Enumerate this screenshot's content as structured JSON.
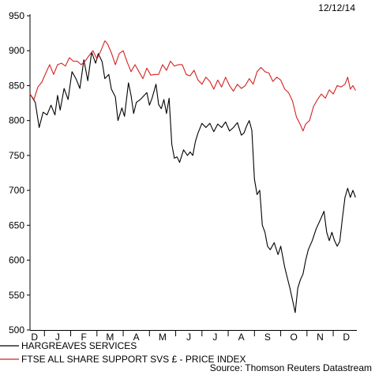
{
  "date_label": "12/12/14",
  "source": "Source: Thomson Reuters Datastream",
  "chart_data": {
    "type": "line",
    "title": "",
    "xlabel": "",
    "ylabel": "",
    "ylim": [
      500,
      950
    ],
    "yticks": [
      500,
      550,
      600,
      650,
      700,
      750,
      800,
      850,
      900,
      950
    ],
    "x_categories": [
      "D",
      "J",
      "F",
      "M",
      "A",
      "M",
      "J",
      "J",
      "A",
      "S",
      "O",
      "N",
      "D"
    ],
    "x_range_months": [
      0,
      12.45
    ],
    "grid": false,
    "legend_position": "bottom-left",
    "series": [
      {
        "name": "HARGREAVES SERVICES",
        "color": "#000000",
        "points": [
          [
            0,
            838
          ],
          [
            0.2,
            826
          ],
          [
            0.35,
            790
          ],
          [
            0.5,
            812
          ],
          [
            0.65,
            808
          ],
          [
            0.8,
            822
          ],
          [
            0.95,
            808
          ],
          [
            1.05,
            836
          ],
          [
            1.15,
            815
          ],
          [
            1.3,
            846
          ],
          [
            1.45,
            830
          ],
          [
            1.6,
            870
          ],
          [
            1.75,
            860
          ],
          [
            1.9,
            846
          ],
          [
            2.05,
            887
          ],
          [
            2.2,
            857
          ],
          [
            2.35,
            898
          ],
          [
            2.5,
            882
          ],
          [
            2.6,
            896
          ],
          [
            2.75,
            884
          ],
          [
            2.85,
            860
          ],
          [
            3.0,
            866
          ],
          [
            3.1,
            845
          ],
          [
            3.25,
            834
          ],
          [
            3.35,
            800
          ],
          [
            3.5,
            818
          ],
          [
            3.6,
            806
          ],
          [
            3.75,
            854
          ],
          [
            3.85,
            836
          ],
          [
            3.95,
            810
          ],
          [
            4.05,
            826
          ],
          [
            4.2,
            830
          ],
          [
            4.35,
            836
          ],
          [
            4.45,
            840
          ],
          [
            4.55,
            822
          ],
          [
            4.65,
            832
          ],
          [
            4.8,
            852
          ],
          [
            4.9,
            823
          ],
          [
            5.0,
            817
          ],
          [
            5.1,
            830
          ],
          [
            5.2,
            810
          ],
          [
            5.3,
            832
          ],
          [
            5.4,
            766
          ],
          [
            5.5,
            746
          ],
          [
            5.6,
            748
          ],
          [
            5.7,
            740
          ],
          [
            5.85,
            758
          ],
          [
            6.0,
            750
          ],
          [
            6.1,
            755
          ],
          [
            6.2,
            750
          ],
          [
            6.3,
            770
          ],
          [
            6.4,
            782
          ],
          [
            6.55,
            796
          ],
          [
            6.7,
            790
          ],
          [
            6.85,
            796
          ],
          [
            7.0,
            784
          ],
          [
            7.15,
            795
          ],
          [
            7.3,
            790
          ],
          [
            7.45,
            798
          ],
          [
            7.6,
            785
          ],
          [
            7.75,
            790
          ],
          [
            7.9,
            797
          ],
          [
            8.05,
            779
          ],
          [
            8.15,
            782
          ],
          [
            8.25,
            792
          ],
          [
            8.35,
            800
          ],
          [
            8.45,
            786
          ],
          [
            8.55,
            716
          ],
          [
            8.65,
            694
          ],
          [
            8.75,
            700
          ],
          [
            8.85,
            650
          ],
          [
            8.95,
            640
          ],
          [
            9.05,
            620
          ],
          [
            9.15,
            615
          ],
          [
            9.3,
            625
          ],
          [
            9.45,
            608
          ],
          [
            9.55,
            620
          ],
          [
            9.7,
            590
          ],
          [
            9.8,
            575
          ],
          [
            9.9,
            560
          ],
          [
            10.0,
            543
          ],
          [
            10.1,
            525
          ],
          [
            10.2,
            560
          ],
          [
            10.3,
            572
          ],
          [
            10.4,
            580
          ],
          [
            10.5,
            600
          ],
          [
            10.6,
            615
          ],
          [
            10.75,
            628
          ],
          [
            10.9,
            645
          ],
          [
            11.05,
            657
          ],
          [
            11.2,
            670
          ],
          [
            11.3,
            640
          ],
          [
            11.4,
            628
          ],
          [
            11.5,
            640
          ],
          [
            11.6,
            628
          ],
          [
            11.7,
            620
          ],
          [
            11.8,
            627
          ],
          [
            11.9,
            660
          ],
          [
            12.0,
            690
          ],
          [
            12.1,
            703
          ],
          [
            12.2,
            690
          ],
          [
            12.3,
            700
          ],
          [
            12.4,
            690
          ]
        ]
      },
      {
        "name": "FTSE ALL SHARE SUPPORT SVS £ - PRICE INDEX",
        "color": "#d42222",
        "points": [
          [
            0,
            838
          ],
          [
            0.15,
            830
          ],
          [
            0.3,
            848
          ],
          [
            0.45,
            855
          ],
          [
            0.6,
            868
          ],
          [
            0.75,
            880
          ],
          [
            0.9,
            866
          ],
          [
            1.05,
            880
          ],
          [
            1.2,
            882
          ],
          [
            1.35,
            878
          ],
          [
            1.5,
            890
          ],
          [
            1.65,
            885
          ],
          [
            1.8,
            885
          ],
          [
            1.95,
            880
          ],
          [
            2.1,
            885
          ],
          [
            2.25,
            893
          ],
          [
            2.4,
            900
          ],
          [
            2.55,
            888
          ],
          [
            2.7,
            900
          ],
          [
            2.85,
            914
          ],
          [
            2.95,
            910
          ],
          [
            3.1,
            897
          ],
          [
            3.25,
            880
          ],
          [
            3.4,
            896
          ],
          [
            3.55,
            900
          ],
          [
            3.7,
            884
          ],
          [
            3.85,
            870
          ],
          [
            4.0,
            880
          ],
          [
            4.15,
            870
          ],
          [
            4.3,
            860
          ],
          [
            4.45,
            875
          ],
          [
            4.6,
            865
          ],
          [
            4.75,
            866
          ],
          [
            4.9,
            866
          ],
          [
            5.05,
            880
          ],
          [
            5.2,
            872
          ],
          [
            5.35,
            885
          ],
          [
            5.5,
            878
          ],
          [
            5.65,
            880
          ],
          [
            5.8,
            880
          ],
          [
            5.95,
            866
          ],
          [
            6.1,
            864
          ],
          [
            6.25,
            872
          ],
          [
            6.4,
            858
          ],
          [
            6.55,
            852
          ],
          [
            6.7,
            862
          ],
          [
            6.85,
            856
          ],
          [
            7.0,
            845
          ],
          [
            7.15,
            858
          ],
          [
            7.3,
            848
          ],
          [
            7.45,
            862
          ],
          [
            7.6,
            850
          ],
          [
            7.75,
            842
          ],
          [
            7.9,
            852
          ],
          [
            8.05,
            846
          ],
          [
            8.2,
            850
          ],
          [
            8.35,
            860
          ],
          [
            8.5,
            852
          ],
          [
            8.65,
            870
          ],
          [
            8.8,
            876
          ],
          [
            8.95,
            870
          ],
          [
            9.1,
            868
          ],
          [
            9.25,
            856
          ],
          [
            9.4,
            862
          ],
          [
            9.55,
            858
          ],
          [
            9.7,
            845
          ],
          [
            9.85,
            840
          ],
          [
            10.0,
            828
          ],
          [
            10.15,
            805
          ],
          [
            10.3,
            794
          ],
          [
            10.4,
            785
          ],
          [
            10.5,
            795
          ],
          [
            10.65,
            800
          ],
          [
            10.8,
            820
          ],
          [
            10.95,
            830
          ],
          [
            11.1,
            838
          ],
          [
            11.25,
            832
          ],
          [
            11.4,
            844
          ],
          [
            11.55,
            838
          ],
          [
            11.7,
            850
          ],
          [
            11.85,
            848
          ],
          [
            12.0,
            852
          ],
          [
            12.1,
            862
          ],
          [
            12.2,
            845
          ],
          [
            12.3,
            850
          ],
          [
            12.4,
            843
          ]
        ]
      }
    ]
  }
}
